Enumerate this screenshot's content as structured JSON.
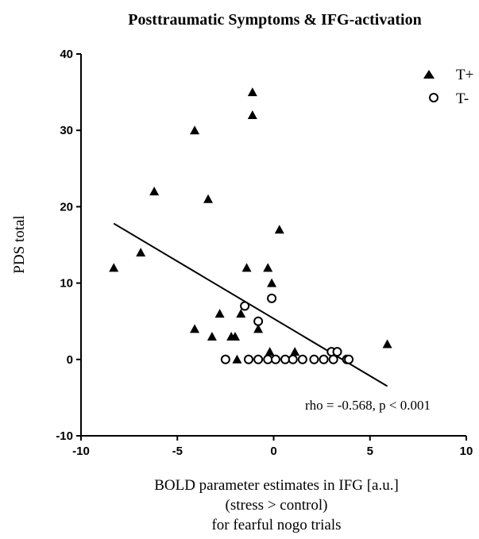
{
  "chart_data": {
    "type": "scatter",
    "title": "Posttraumatic Symptoms & IFG-activation",
    "xlabel": [
      "BOLD parameter estimates in IFG [a.u.]",
      "(stress > control)",
      "for fearful nogo trials"
    ],
    "ylabel": "PDS total",
    "xlim": [
      -10,
      10
    ],
    "ylim": [
      -10,
      40
    ],
    "xticks": [
      "-10",
      "-5",
      "0",
      "5",
      "10"
    ],
    "yticks": [
      "-10",
      "0",
      "10",
      "20",
      "30",
      "40"
    ],
    "legend_position": "top-right",
    "annotation": "rho = -0.568, p < 0.001",
    "regression_line": {
      "x": [
        -8.3,
        5.9
      ],
      "y": [
        17.8,
        -3.5
      ]
    },
    "series": [
      {
        "name": "T+",
        "marker": "filled-triangle",
        "color": "#000000",
        "points": [
          [
            -8.3,
            12
          ],
          [
            -6.9,
            14
          ],
          [
            -6.2,
            22
          ],
          [
            -4.1,
            30
          ],
          [
            -4.1,
            4
          ],
          [
            -3.4,
            21
          ],
          [
            -3.2,
            3
          ],
          [
            -2.8,
            6
          ],
          [
            -2.2,
            3
          ],
          [
            -2.0,
            3
          ],
          [
            -1.9,
            0
          ],
          [
            -1.7,
            6
          ],
          [
            -1.4,
            12
          ],
          [
            -1.1,
            35
          ],
          [
            -1.1,
            32
          ],
          [
            -0.8,
            4
          ],
          [
            -0.3,
            12
          ],
          [
            -0.2,
            1
          ],
          [
            -0.1,
            10
          ],
          [
            0.3,
            17
          ],
          [
            1.1,
            1
          ],
          [
            5.9,
            2
          ]
        ]
      },
      {
        "name": "T-",
        "marker": "open-circle",
        "color": "#000000",
        "points": [
          [
            -2.5,
            0
          ],
          [
            -1.3,
            0
          ],
          [
            -1.5,
            7
          ],
          [
            -0.8,
            5
          ],
          [
            -0.8,
            0
          ],
          [
            -0.3,
            0
          ],
          [
            -0.1,
            8
          ],
          [
            0.1,
            0
          ],
          [
            0.6,
            0
          ],
          [
            1.0,
            0
          ],
          [
            1.5,
            0
          ],
          [
            2.1,
            0
          ],
          [
            2.6,
            0
          ],
          [
            3.0,
            1
          ],
          [
            3.1,
            0
          ],
          [
            3.3,
            1
          ],
          [
            3.8,
            0
          ],
          [
            3.9,
            0
          ]
        ]
      }
    ]
  }
}
